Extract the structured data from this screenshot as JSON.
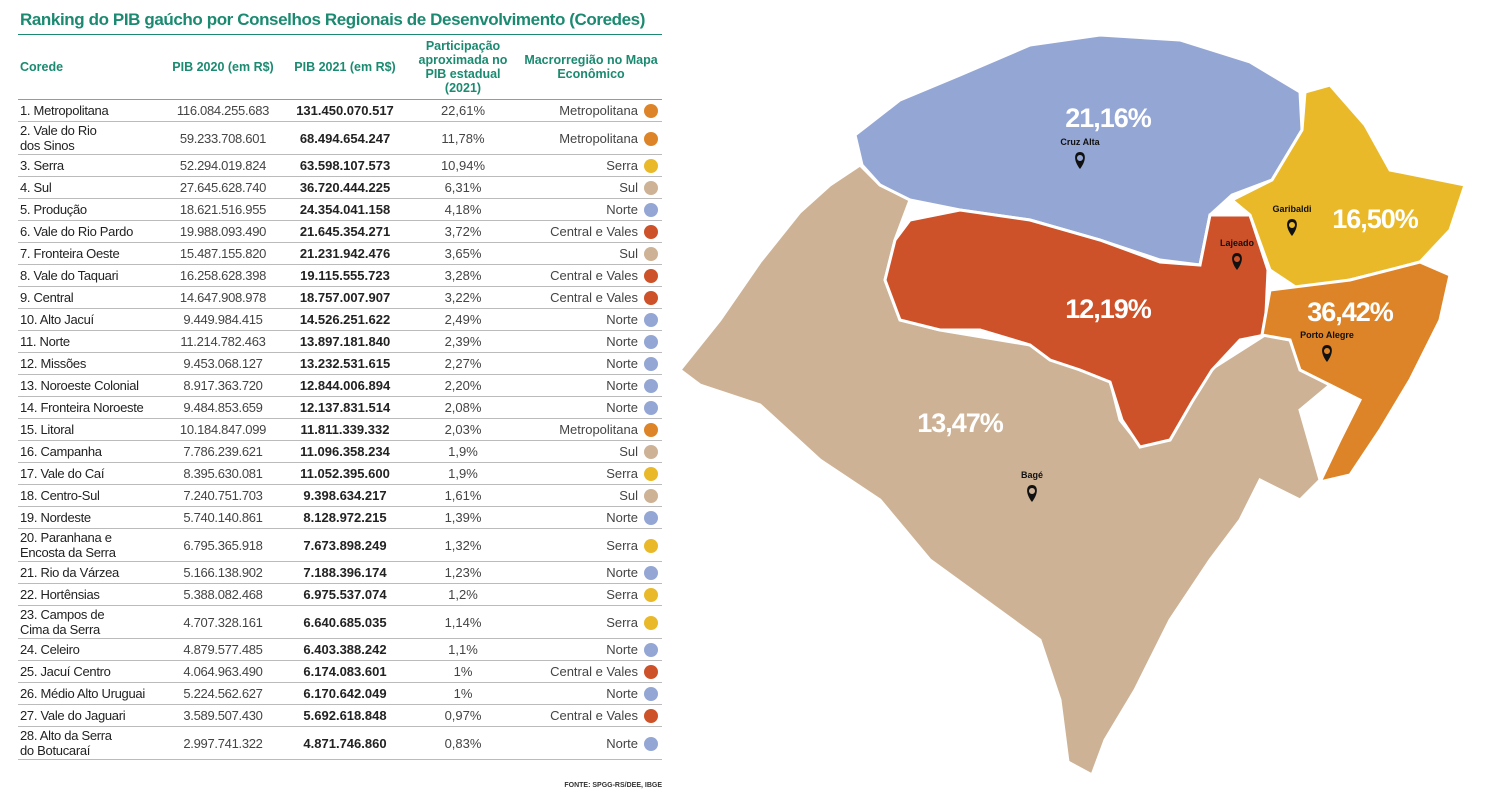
{
  "title": "Ranking do PIB gaúcho por Conselhos Regionais de Desenvolvimento (Coredes)",
  "source": "FONTE: SPGG-RS/DEE, IBGE",
  "colors": {
    "Metropolitana": "#de8428",
    "Serra": "#e9b92a",
    "Sul": "#cdb295",
    "Norte": "#94a6d4",
    "Central e Vales": "#cd5229",
    "title": "#1b8a70"
  },
  "chart_data": {
    "type": "table",
    "title": "Ranking do PIB gaúcho por Conselhos Regionais de Desenvolvimento (Coredes)",
    "columns": [
      "Corede",
      "PIB 2020 (em R$)",
      "PIB 2021 (em R$)",
      "Participação aproximada no PIB estadual (2021)",
      "Macrorregião no Mapa Econômico"
    ],
    "rows": [
      [
        "1. Metropolitana",
        "116.084.255.683",
        "131.450.070.517",
        "22,61%",
        "Metropolitana"
      ],
      [
        "2. Vale do Rio dos Sinos",
        "59.233.708.601",
        "68.494.654.247",
        "11,78%",
        "Metropolitana"
      ],
      [
        "3. Serra",
        "52.294.019.824",
        "63.598.107.573",
        "10,94%",
        "Serra"
      ],
      [
        "4. Sul",
        "27.645.628.740",
        "36.720.444.225",
        "6,31%",
        "Sul"
      ],
      [
        "5. Produção",
        "18.621.516.955",
        "24.354.041.158",
        "4,18%",
        "Norte"
      ],
      [
        "6. Vale do Rio Pardo",
        "19.988.093.490",
        "21.645.354.271",
        "3,72%",
        "Central e Vales"
      ],
      [
        "7. Fronteira Oeste",
        "15.487.155.820",
        "21.231.942.476",
        "3,65%",
        "Sul"
      ],
      [
        "8. Vale do Taquari",
        "16.258.628.398",
        "19.115.555.723",
        "3,28%",
        "Central e Vales"
      ],
      [
        "9. Central",
        "14.647.908.978",
        "18.757.007.907",
        "3,22%",
        "Central e Vales"
      ],
      [
        "10. Alto Jacuí",
        "9.449.984.415",
        "14.526.251.622",
        "2,49%",
        "Norte"
      ],
      [
        "11. Norte",
        "11.214.782.463",
        "13.897.181.840",
        "2,39%",
        "Norte"
      ],
      [
        "12. Missões",
        "9.453.068.127",
        "13.232.531.615",
        "2,27%",
        "Norte"
      ],
      [
        "13. Noroeste Colonial",
        "8.917.363.720",
        "12.844.006.894",
        "2,20%",
        "Norte"
      ],
      [
        "14. Fronteira Noroeste",
        "9.484.853.659",
        "12.137.831.514",
        "2,08%",
        "Norte"
      ],
      [
        "15. Litoral",
        "10.184.847.099",
        "11.811.339.332",
        "2,03%",
        "Metropolitana"
      ],
      [
        "16. Campanha",
        "7.786.239.621",
        "11.096.358.234",
        "1,9%",
        "Sul"
      ],
      [
        "17. Vale do Caí",
        "8.395.630.081",
        "11.052.395.600",
        "1,9%",
        "Serra"
      ],
      [
        "18. Centro-Sul",
        "7.240.751.703",
        "9.398.634.217",
        "1,61%",
        "Sul"
      ],
      [
        "19. Nordeste",
        "5.740.140.861",
        "8.128.972.215",
        "1,39%",
        "Norte"
      ],
      [
        "20. Paranhana e Encosta da Serra",
        "6.795.365.918",
        "7.673.898.249",
        "1,32%",
        "Serra"
      ],
      [
        "21. Rio da Várzea",
        "5.166.138.902",
        "7.188.396.174",
        "1,23%",
        "Norte"
      ],
      [
        "22. Hortênsias",
        "5.388.082.468",
        "6.975.537.074",
        "1,2%",
        "Serra"
      ],
      [
        "23. Campos de Cima da Serra",
        "4.707.328.161",
        "6.640.685.035",
        "1,14%",
        "Serra"
      ],
      [
        "24. Celeiro",
        "4.879.577.485",
        "6.403.388.242",
        "1,1%",
        "Norte"
      ],
      [
        "25. Jacuí Centro",
        "4.064.963.490",
        "6.174.083.601",
        "1%",
        "Central e Vales"
      ],
      [
        "26. Médio Alto Uruguai",
        "5.224.562.627",
        "6.170.642.049",
        "1%",
        "Norte"
      ],
      [
        "27. Vale do Jaguari",
        "3.589.507.430",
        "5.692.618.848",
        "0,97%",
        "Central e Vales"
      ],
      [
        "28. Alto da Serra do Botucaraí",
        "2.997.741.322",
        "4.871.746.860",
        "0,83%",
        "Norte"
      ]
    ]
  },
  "map": {
    "regions": [
      {
        "name": "Sul",
        "share": "13,47%",
        "city": "Bagé"
      },
      {
        "name": "Norte",
        "share": "21,16%",
        "city": "Cruz Alta"
      },
      {
        "name": "Central e Vales",
        "share": "12,19%",
        "city": "Lajeado"
      },
      {
        "name": "Serra",
        "share": "16,50%",
        "city": "Garibaldi"
      },
      {
        "name": "Metropolitana",
        "share": "36,42%",
        "city": "Porto Alegre"
      }
    ]
  }
}
